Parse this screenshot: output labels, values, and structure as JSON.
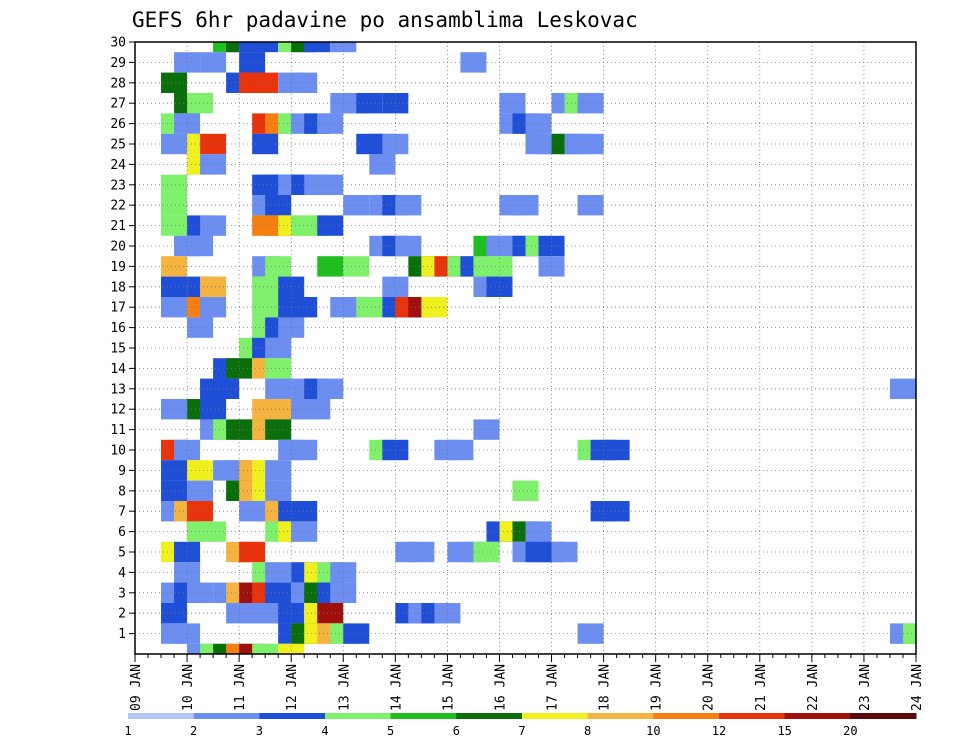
{
  "chart_data": {
    "type": "heatmap",
    "title": "GEFS 6hr padavine po ansamblima Leskovac",
    "xlabel": "",
    "ylabel": "",
    "x_tick_labels": [
      "09 JAN",
      "10 JAN",
      "11 JAN",
      "12 JAN",
      "13 JAN",
      "14 JAN",
      "15 JAN",
      "16 JAN",
      "17 JAN",
      "18 JAN",
      "19 JAN",
      "20 JAN",
      "21 JAN",
      "22 JAN",
      "23 JAN",
      "24 JAN"
    ],
    "y_tick_labels": [
      "1",
      "2",
      "3",
      "4",
      "5",
      "6",
      "7",
      "8",
      "9",
      "10",
      "11",
      "12",
      "13",
      "14",
      "15",
      "16",
      "17",
      "18",
      "19",
      "20",
      "21",
      "22",
      "23",
      "24",
      "25",
      "26",
      "27",
      "28",
      "29",
      "30"
    ],
    "xlim": [
      0,
      60
    ],
    "ylim": [
      0,
      30
    ],
    "grid": true,
    "step_hours": 6,
    "colorbar": {
      "placement": "bottom",
      "levels": [
        "1",
        "2",
        "3",
        "4",
        "5",
        "6",
        "7",
        "8",
        "10",
        "12",
        "15",
        "20"
      ],
      "colors": [
        "#b3c6f5",
        "#6b8ef0",
        "#1f4fd6",
        "#7ef06b",
        "#1fbf1f",
        "#0a6e0a",
        "#f0f01f",
        "#f5b340",
        "#f57f10",
        "#e8330c",
        "#a0100c",
        "#5a0a0a"
      ]
    },
    "cells": [
      [
        7,
        30,
        4
      ],
      [
        8,
        30,
        5
      ],
      [
        9,
        30,
        2
      ],
      [
        10,
        30,
        2
      ],
      [
        12,
        30,
        3
      ],
      [
        13,
        30,
        5
      ],
      [
        14,
        30,
        2
      ],
      [
        16,
        30,
        1
      ],
      [
        4,
        29,
        1
      ],
      [
        6,
        29,
        1
      ],
      [
        9,
        29,
        2
      ],
      [
        26,
        29,
        1
      ],
      [
        3,
        28,
        5
      ],
      [
        8,
        28,
        2
      ],
      [
        9,
        28,
        9
      ],
      [
        10,
        28,
        9
      ],
      [
        12,
        28,
        1
      ],
      [
        13,
        28,
        1
      ],
      [
        4,
        27,
        5
      ],
      [
        5,
        27,
        3
      ],
      [
        16,
        27,
        1
      ],
      [
        17,
        27,
        1
      ],
      [
        18,
        27,
        2
      ],
      [
        20,
        27,
        2
      ],
      [
        29,
        27,
        1
      ],
      [
        33,
        27,
        1
      ],
      [
        34,
        27,
        3
      ],
      [
        35,
        27,
        1
      ],
      [
        3,
        26,
        3
      ],
      [
        4,
        26,
        1
      ],
      [
        10,
        26,
        9
      ],
      [
        11,
        26,
        8
      ],
      [
        12,
        26,
        3
      ],
      [
        13,
        26,
        1
      ],
      [
        14,
        26,
        2
      ],
      [
        15,
        26,
        1
      ],
      [
        29,
        26,
        1
      ],
      [
        30,
        26,
        2
      ],
      [
        31,
        26,
        1
      ],
      [
        3,
        25,
        1
      ],
      [
        5,
        25,
        6
      ],
      [
        6,
        25,
        9
      ],
      [
        10,
        25,
        2
      ],
      [
        18,
        25,
        2
      ],
      [
        19,
        25,
        2
      ],
      [
        20,
        25,
        1
      ],
      [
        31,
        25,
        1
      ],
      [
        32,
        25,
        1
      ],
      [
        33,
        25,
        5
      ],
      [
        34,
        25,
        1
      ],
      [
        35,
        25,
        1
      ],
      [
        5,
        24,
        6
      ],
      [
        6,
        24,
        1
      ],
      [
        19,
        24,
        1
      ],
      [
        3,
        23,
        3
      ],
      [
        10,
        23,
        2
      ],
      [
        11,
        23,
        2
      ],
      [
        12,
        23,
        1
      ],
      [
        13,
        23,
        2
      ],
      [
        14,
        23,
        1
      ],
      [
        15,
        23,
        1
      ],
      [
        3,
        22,
        3
      ],
      [
        10,
        22,
        1
      ],
      [
        11,
        22,
        2
      ],
      [
        17,
        22,
        1
      ],
      [
        19,
        22,
        1
      ],
      [
        20,
        22,
        2
      ],
      [
        21,
        22,
        1
      ],
      [
        29,
        22,
        1
      ],
      [
        30,
        22,
        1
      ],
      [
        35,
        22,
        1
      ],
      [
        3,
        21,
        3
      ],
      [
        5,
        21,
        2
      ],
      [
        6,
        21,
        1
      ],
      [
        10,
        21,
        8
      ],
      [
        11,
        21,
        8
      ],
      [
        12,
        21,
        6
      ],
      [
        13,
        21,
        3
      ],
      [
        14,
        21,
        3
      ],
      [
        15,
        21,
        2
      ],
      [
        4,
        20,
        1
      ],
      [
        5,
        20,
        1
      ],
      [
        19,
        20,
        1
      ],
      [
        20,
        20,
        2
      ],
      [
        21,
        20,
        1
      ],
      [
        27,
        20,
        4
      ],
      [
        28,
        20,
        1
      ],
      [
        29,
        20,
        1
      ],
      [
        30,
        20,
        2
      ],
      [
        31,
        20,
        3
      ],
      [
        32,
        20,
        2
      ],
      [
        3,
        19,
        7
      ],
      [
        10,
        19,
        1
      ],
      [
        11,
        19,
        3
      ],
      [
        15,
        19,
        4
      ],
      [
        17,
        19,
        3
      ],
      [
        22,
        19,
        5
      ],
      [
        23,
        19,
        6
      ],
      [
        24,
        19,
        9
      ],
      [
        25,
        19,
        3
      ],
      [
        26,
        19,
        2
      ],
      [
        27,
        19,
        3
      ],
      [
        28,
        19,
        3
      ],
      [
        32,
        19,
        1
      ],
      [
        3,
        18,
        2
      ],
      [
        5,
        18,
        2
      ],
      [
        6,
        18,
        7
      ],
      [
        10,
        18,
        3
      ],
      [
        11,
        18,
        3
      ],
      [
        12,
        18,
        2
      ],
      [
        20,
        18,
        1
      ],
      [
        27,
        18,
        1
      ],
      [
        28,
        18,
        2
      ],
      [
        3,
        17,
        1
      ],
      [
        5,
        17,
        8
      ],
      [
        6,
        17,
        1
      ],
      [
        10,
        17,
        3
      ],
      [
        11,
        17,
        3
      ],
      [
        12,
        17,
        2
      ],
      [
        13,
        17,
        2
      ],
      [
        16,
        17,
        1
      ],
      [
        17,
        17,
        1
      ],
      [
        18,
        17,
        3
      ],
      [
        20,
        17,
        2
      ],
      [
        21,
        17,
        9
      ],
      [
        22,
        17,
        10
      ],
      [
        23,
        17,
        6
      ],
      [
        5,
        16,
        1
      ],
      [
        10,
        16,
        3
      ],
      [
        11,
        16,
        2
      ],
      [
        12,
        16,
        1
      ],
      [
        9,
        15,
        3
      ],
      [
        10,
        15,
        2
      ],
      [
        11,
        15,
        1
      ],
      [
        7,
        14,
        2
      ],
      [
        8,
        14,
        5
      ],
      [
        10,
        14,
        7
      ],
      [
        11,
        14,
        3
      ],
      [
        6,
        13,
        2
      ],
      [
        7,
        13,
        2
      ],
      [
        11,
        13,
        1
      ],
      [
        13,
        13,
        1
      ],
      [
        14,
        13,
        2
      ],
      [
        15,
        13,
        1
      ],
      [
        59,
        13,
        1
      ],
      [
        3,
        12,
        1
      ],
      [
        5,
        12,
        5
      ],
      [
        6,
        12,
        2
      ],
      [
        10,
        12,
        7
      ],
      [
        11,
        12,
        7
      ],
      [
        12,
        12,
        7
      ],
      [
        13,
        12,
        1
      ],
      [
        14,
        12,
        1
      ],
      [
        6,
        11,
        1
      ],
      [
        7,
        11,
        3
      ],
      [
        8,
        11,
        5
      ],
      [
        9,
        11,
        5
      ],
      [
        10,
        11,
        7
      ],
      [
        11,
        11,
        5
      ],
      [
        27,
        11,
        1
      ],
      [
        3,
        10,
        9
      ],
      [
        4,
        10,
        1
      ],
      [
        12,
        10,
        1
      ],
      [
        13,
        10,
        1
      ],
      [
        19,
        10,
        3
      ],
      [
        20,
        10,
        2
      ],
      [
        24,
        10,
        1
      ],
      [
        25,
        10,
        1
      ],
      [
        35,
        10,
        3
      ],
      [
        36,
        10,
        2
      ],
      [
        37,
        10,
        2
      ],
      [
        3,
        9,
        2
      ],
      [
        5,
        9,
        6
      ],
      [
        7,
        9,
        1
      ],
      [
        8,
        9,
        1
      ],
      [
        9,
        9,
        7
      ],
      [
        10,
        9,
        6
      ],
      [
        11,
        9,
        1
      ],
      [
        3,
        8,
        2
      ],
      [
        5,
        8,
        1
      ],
      [
        8,
        8,
        5
      ],
      [
        9,
        8,
        7
      ],
      [
        10,
        8,
        6
      ],
      [
        11,
        8,
        1
      ],
      [
        30,
        8,
        3
      ],
      [
        3,
        7,
        1
      ],
      [
        4,
        7,
        7
      ],
      [
        5,
        7,
        9
      ],
      [
        9,
        7,
        1
      ],
      [
        10,
        7,
        1
      ],
      [
        11,
        7,
        7
      ],
      [
        12,
        7,
        2
      ],
      [
        13,
        7,
        2
      ],
      [
        36,
        7,
        2
      ],
      [
        37,
        7,
        2
      ],
      [
        5,
        6,
        3
      ],
      [
        6,
        6,
        3
      ],
      [
        11,
        6,
        3
      ],
      [
        12,
        6,
        6
      ],
      [
        13,
        6,
        1
      ],
      [
        28,
        6,
        2
      ],
      [
        29,
        6,
        6
      ],
      [
        30,
        6,
        5
      ],
      [
        31,
        6,
        1
      ],
      [
        3,
        5,
        6
      ],
      [
        4,
        5,
        2
      ],
      [
        8,
        5,
        7
      ],
      [
        9,
        5,
        9
      ],
      [
        21,
        5,
        1
      ],
      [
        22,
        5,
        1
      ],
      [
        25,
        5,
        1
      ],
      [
        26,
        5,
        1
      ],
      [
        27,
        5,
        3
      ],
      [
        30,
        5,
        1
      ],
      [
        31,
        5,
        2
      ],
      [
        32,
        5,
        2
      ],
      [
        33,
        5,
        1
      ],
      [
        4,
        4,
        1
      ],
      [
        10,
        4,
        3
      ],
      [
        11,
        4,
        1
      ],
      [
        13,
        4,
        2
      ],
      [
        14,
        4,
        6
      ],
      [
        15,
        4,
        3
      ],
      [
        16,
        4,
        1
      ],
      [
        3,
        3,
        1
      ],
      [
        4,
        3,
        2
      ],
      [
        5,
        3,
        1
      ],
      [
        7,
        3,
        1
      ],
      [
        8,
        3,
        7
      ],
      [
        9,
        3,
        10
      ],
      [
        10,
        3,
        9
      ],
      [
        11,
        3,
        2
      ],
      [
        13,
        3,
        1
      ],
      [
        14,
        3,
        5
      ],
      [
        15,
        3,
        2
      ],
      [
        16,
        3,
        1
      ],
      [
        3,
        2,
        2
      ],
      [
        8,
        2,
        1
      ],
      [
        9,
        2,
        1
      ],
      [
        10,
        2,
        1
      ],
      [
        11,
        2,
        1
      ],
      [
        12,
        2,
        2
      ],
      [
        14,
        2,
        6
      ],
      [
        15,
        2,
        10
      ],
      [
        21,
        2,
        2
      ],
      [
        22,
        2,
        1
      ],
      [
        23,
        2,
        2
      ],
      [
        24,
        2,
        1
      ],
      [
        3,
        1,
        1
      ],
      [
        4,
        1,
        1
      ],
      [
        12,
        1,
        2
      ],
      [
        13,
        1,
        5
      ],
      [
        14,
        1,
        6
      ],
      [
        15,
        1,
        7
      ],
      [
        16,
        1,
        3
      ],
      [
        17,
        1,
        2
      ],
      [
        35,
        1,
        1
      ],
      [
        59,
        1,
        1
      ],
      [
        60,
        1,
        3
      ],
      [
        5,
        0,
        1
      ],
      [
        6,
        0,
        3
      ],
      [
        7,
        0,
        5
      ],
      [
        8,
        0,
        8
      ],
      [
        9,
        0,
        10
      ],
      [
        10,
        0,
        3
      ],
      [
        11,
        0,
        3
      ],
      [
        12,
        0,
        6
      ]
    ]
  }
}
